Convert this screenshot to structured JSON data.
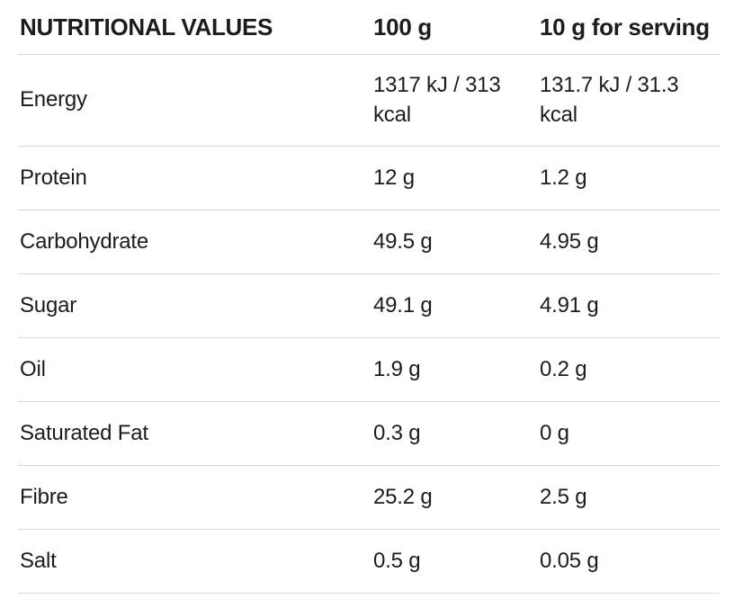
{
  "colors": {
    "text": "#1c1c1c",
    "divider": "#d8d8d8",
    "background": "#ffffff"
  },
  "table": {
    "headers": [
      {
        "label": "NUTRITIONAL VALUES"
      },
      {
        "label": "100 g"
      },
      {
        "label": "10 g for serving"
      }
    ],
    "rows": [
      {
        "label": "Energy",
        "per_100g": "1317 kJ / 313 kcal",
        "per_serving": "131.7 kJ / 31.3 kcal"
      },
      {
        "label": "Protein",
        "per_100g": "12 g",
        "per_serving": "1.2 g"
      },
      {
        "label": "Carbohydrate",
        "per_100g": "49.5 g",
        "per_serving": "4.95 g"
      },
      {
        "label": "Sugar",
        "per_100g": "49.1 g",
        "per_serving": "4.91 g"
      },
      {
        "label": "Oil",
        "per_100g": "1.9 g",
        "per_serving": "0.2 g"
      },
      {
        "label": "Saturated Fat",
        "per_100g": "0.3 g",
        "per_serving": "0 g"
      },
      {
        "label": "Fibre",
        "per_100g": "25.2 g",
        "per_serving": "2.5 g"
      },
      {
        "label": "Salt",
        "per_100g": "0.5 g",
        "per_serving": "0.05 g"
      }
    ]
  }
}
